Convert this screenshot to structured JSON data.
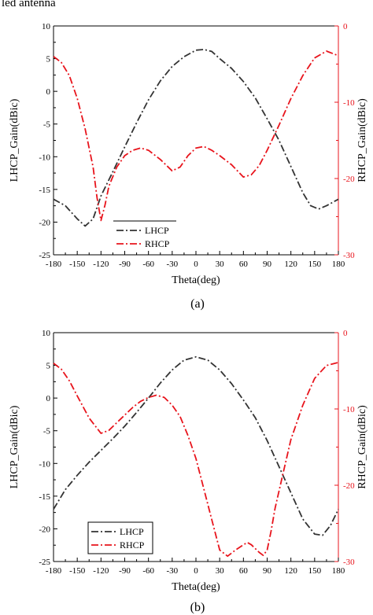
{
  "page_caption": "led antenna",
  "chart_data": [
    {
      "type": "line",
      "caption": "(a)",
      "xlabel": "Theta(deg)",
      "ylabel_left": "LHCP_Gain(dBic)",
      "ylabel_right": "RHCP_Gain(dBic)",
      "xlim": [
        -180,
        180
      ],
      "ylim_left": [
        -25,
        10
      ],
      "ylim_right": [
        -30,
        0
      ],
      "xticks": [
        -180,
        -150,
        -120,
        -90,
        -60,
        -30,
        0,
        30,
        60,
        90,
        120,
        150,
        180
      ],
      "yticks_left": [
        10,
        5,
        0,
        -5,
        -10,
        -15,
        -20,
        -25
      ],
      "yticks_right": [
        0,
        -10,
        -20,
        -30
      ],
      "left_axis_color": "#000000",
      "right_axis_color": "#e8141c",
      "legend_position": "bottom-left",
      "series": [
        {
          "name": "LHCP",
          "axis": "left",
          "color": "#333333",
          "x": [
            -180,
            -165,
            -150,
            -140,
            -130,
            -120,
            -105,
            -90,
            -75,
            -60,
            -45,
            -30,
            -15,
            0,
            10,
            20,
            30,
            45,
            60,
            75,
            90,
            105,
            120,
            135,
            145,
            155,
            165,
            180
          ],
          "y": [
            -16.5,
            -17.5,
            -19.5,
            -20.6,
            -19.5,
            -16,
            -12.3,
            -8.5,
            -4.8,
            -1.3,
            1.6,
            3.8,
            5.3,
            6.3,
            6.4,
            6.1,
            5.0,
            3.5,
            1.5,
            -1.0,
            -4.2,
            -7.5,
            -11.5,
            -15.5,
            -17.5,
            -18.0,
            -17.5,
            -16.5
          ]
        },
        {
          "name": "RHCP",
          "axis": "right",
          "color": "#e8141c",
          "x": [
            -180,
            -170,
            -160,
            -150,
            -140,
            -130,
            -125,
            -120,
            -115,
            -110,
            -100,
            -90,
            -80,
            -70,
            -60,
            -45,
            -30,
            -20,
            -10,
            0,
            10,
            20,
            30,
            45,
            60,
            70,
            80,
            90,
            105,
            120,
            135,
            150,
            165,
            180
          ],
          "y": [
            -4,
            -4.8,
            -6.5,
            -9.5,
            -13.5,
            -18.5,
            -22.5,
            -25.5,
            -23.5,
            -21,
            -18.5,
            -17,
            -16.3,
            -16,
            -16.3,
            -17.5,
            -19,
            -18.5,
            -17,
            -16,
            -15.8,
            -16.3,
            -17,
            -18.2,
            -19.8,
            -19.5,
            -18.3,
            -16.3,
            -13,
            -9.5,
            -6.5,
            -4.2,
            -3.3,
            -3.9
          ]
        }
      ]
    },
    {
      "type": "line",
      "caption": "(b)",
      "xlabel": "Theta(deg)",
      "ylabel_left": "LHCP_Gain(dBic)",
      "ylabel_right": "RHCP_Gain(dBic)",
      "xlim": [
        -180,
        180
      ],
      "ylim_left": [
        -25,
        10
      ],
      "ylim_right": [
        -30,
        0
      ],
      "xticks": [
        -180,
        -150,
        -120,
        -90,
        -60,
        -30,
        0,
        30,
        60,
        90,
        120,
        150,
        180
      ],
      "yticks_left": [
        10,
        5,
        0,
        -5,
        -10,
        -15,
        -20,
        -25
      ],
      "yticks_right": [
        0,
        -10,
        -20,
        -30
      ],
      "left_axis_color": "#000000",
      "right_axis_color": "#e8141c",
      "legend_position": "bottom-left",
      "series": [
        {
          "name": "LHCP",
          "axis": "left",
          "color": "#333333",
          "x": [
            -180,
            -165,
            -150,
            -135,
            -120,
            -105,
            -90,
            -75,
            -60,
            -45,
            -30,
            -15,
            0,
            15,
            30,
            45,
            60,
            75,
            90,
            105,
            120,
            135,
            150,
            160,
            170,
            180
          ],
          "y": [
            -17,
            -14,
            -11.8,
            -9.8,
            -8,
            -6.2,
            -4.3,
            -2.2,
            0,
            2.3,
            4.3,
            5.8,
            6.3,
            5.8,
            4.3,
            2.2,
            -0.3,
            -3,
            -6.5,
            -10.5,
            -14.5,
            -18.5,
            -20.8,
            -21,
            -19.5,
            -17
          ]
        },
        {
          "name": "RHCP",
          "axis": "right",
          "color": "#e8141c",
          "x": [
            -180,
            -170,
            -160,
            -150,
            -135,
            -120,
            -110,
            -100,
            -90,
            -80,
            -70,
            -60,
            -50,
            -40,
            -30,
            -20,
            -10,
            0,
            10,
            20,
            30,
            40,
            50,
            60,
            65,
            70,
            80,
            85,
            90,
            95,
            100,
            110,
            120,
            135,
            150,
            165,
            180
          ],
          "y": [
            -4,
            -4.8,
            -6.3,
            -8.3,
            -11.2,
            -13.2,
            -12.8,
            -11.8,
            -10.8,
            -9.8,
            -9,
            -8.5,
            -8.2,
            -8.5,
            -9.5,
            -11,
            -13.5,
            -16.5,
            -20.5,
            -24.5,
            -28.5,
            -29.3,
            -28.5,
            -27.8,
            -27.5,
            -27.8,
            -28.8,
            -29.2,
            -28.5,
            -26,
            -23,
            -18.5,
            -14,
            -9.5,
            -6,
            -4.3,
            -3.9
          ]
        }
      ]
    }
  ]
}
